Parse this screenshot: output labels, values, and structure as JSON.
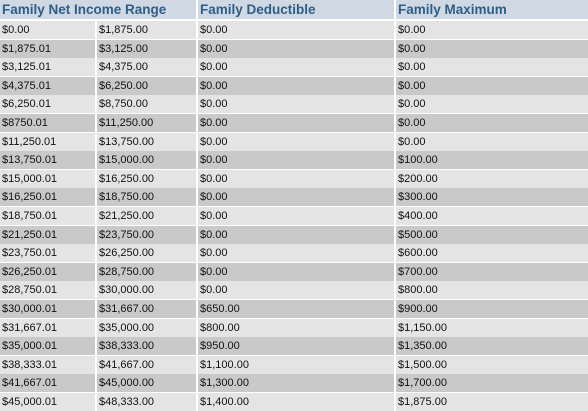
{
  "headers": {
    "range": "Family Net Income Range",
    "deductible": "Family Deductible",
    "maximum": "Family Maximum"
  },
  "rows": [
    [
      "$0.00",
      "$1,875.00",
      "$0.00",
      "$0.00"
    ],
    [
      "$1,875.01",
      "$3,125.00",
      "$0.00",
      "$0.00"
    ],
    [
      "$3,125.01",
      "$4,375.00",
      "$0.00",
      "$0.00"
    ],
    [
      "$4,375.01",
      "$6,250.00",
      "$0.00",
      "$0.00"
    ],
    [
      "$6,250.01",
      "$8,750.00",
      "$0.00",
      "$0.00"
    ],
    [
      "$8750.01",
      "$11,250.00",
      "$0.00",
      "$0.00"
    ],
    [
      "$11,250.01",
      "$13,750.00",
      "$0.00",
      "$0.00"
    ],
    [
      "$13,750.01",
      "$15,000.00",
      "$0.00",
      "$100.00"
    ],
    [
      "$15,000.01",
      "$16,250.00",
      "$0.00",
      "$200.00"
    ],
    [
      "$16,250.01",
      "$18,750.00",
      "$0.00",
      "$300.00"
    ],
    [
      "$18,750.01",
      "$21,250.00",
      "$0.00",
      "$400.00"
    ],
    [
      "$21,250.01",
      "$23,750.00",
      "$0.00",
      "$500.00"
    ],
    [
      "$23,750.01",
      "$26,250.00",
      "$0.00",
      "$600.00"
    ],
    [
      "$26,250.01",
      "$28,750.00",
      "$0.00",
      "$700.00"
    ],
    [
      "$28,750.01",
      "$30,000.00",
      "$0.00",
      "$800.00"
    ],
    [
      "$30,000.01",
      "$31,667.00",
      "$650.00",
      "$900.00"
    ],
    [
      "$31,667.01",
      "$35,000.00",
      "$800.00",
      "$1,150.00"
    ],
    [
      "$35,000.01",
      "$38,333.00",
      "$950.00",
      "$1,350.00"
    ],
    [
      "$38,333.01",
      "$41,667.00",
      "$1,100.00",
      "$1,500.00"
    ],
    [
      "$41,667.01",
      "$45,000.00",
      "$1,300.00",
      "$1,700.00"
    ],
    [
      "$45,000.01",
      "$48,333.00",
      "$1,400.00",
      "$1,875.00"
    ]
  ]
}
